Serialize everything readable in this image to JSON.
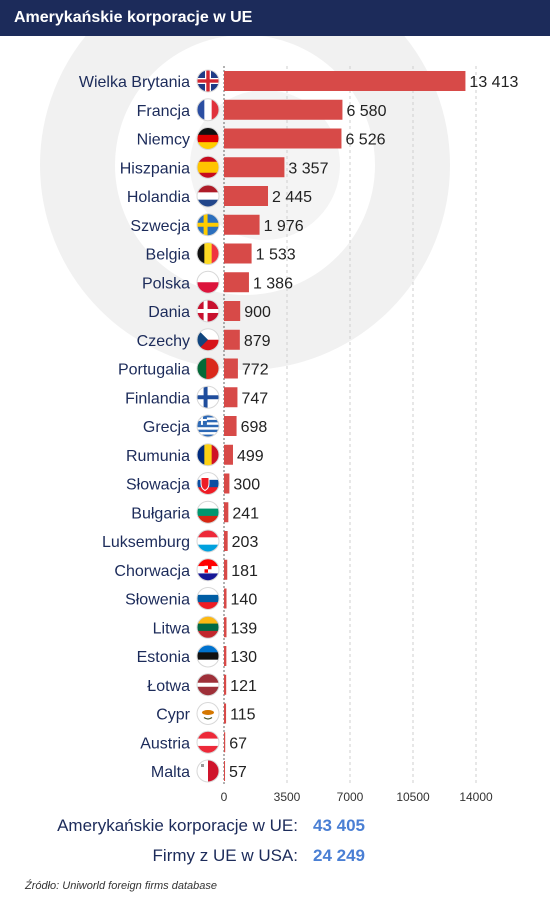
{
  "header": {
    "title": "Amerykańskie korporacje w UE"
  },
  "chart_data": {
    "type": "bar",
    "orientation": "horizontal",
    "title": "Amerykańskie korporacje w UE",
    "categories": [
      "Wielka Brytania",
      "Francja",
      "Niemcy",
      "Hiszpania",
      "Holandia",
      "Szwecja",
      "Belgia",
      "Polska",
      "Dania",
      "Czechy",
      "Portugalia",
      "Finlandia",
      "Grecja",
      "Rumunia",
      "Słowacja",
      "Bułgaria",
      "Luksemburg",
      "Chorwacja",
      "Słowenia",
      "Litwa",
      "Estonia",
      "Łotwa",
      "Cypr",
      "Austria",
      "Malta"
    ],
    "values": [
      13413,
      6580,
      6526,
      3357,
      2445,
      1976,
      1533,
      1386,
      900,
      879,
      772,
      747,
      698,
      499,
      300,
      241,
      203,
      181,
      140,
      139,
      130,
      121,
      115,
      67,
      57
    ],
    "value_labels": [
      "13 413",
      "6 580",
      "6 526",
      "3 357",
      "2 445",
      "1 976",
      "1 533",
      "1 386",
      "900",
      "879",
      "772",
      "747",
      "698",
      "499",
      "300",
      "241",
      "203",
      "181",
      "140",
      "139",
      "130",
      "121",
      "115",
      "67",
      "57"
    ],
    "flags": [
      "uk-flag-icon",
      "france-flag-icon",
      "germany-flag-icon",
      "spain-flag-icon",
      "netherlands-flag-icon",
      "sweden-flag-icon",
      "belgium-flag-icon",
      "poland-flag-icon",
      "denmark-flag-icon",
      "czech-flag-icon",
      "portugal-flag-icon",
      "finland-flag-icon",
      "greece-flag-icon",
      "romania-flag-icon",
      "slovakia-flag-icon",
      "bulgaria-flag-icon",
      "luxembourg-flag-icon",
      "croatia-flag-icon",
      "slovenia-flag-icon",
      "lithuania-flag-icon",
      "estonia-flag-icon",
      "latvia-flag-icon",
      "cyprus-flag-icon",
      "austria-flag-icon",
      "malta-flag-icon"
    ],
    "x_ticks": [
      0,
      3500,
      7000,
      10500,
      14000
    ],
    "x_tick_labels": [
      "0",
      "3500",
      "7000",
      "10500",
      "14000"
    ],
    "xlim": [
      0,
      14000
    ],
    "bar_color": "#d74a48",
    "grid": true
  },
  "summary": [
    {
      "label": "Amerykańskie korporacje w UE:",
      "value": "43 405"
    },
    {
      "label": "Firmy z UE w USA:",
      "value": "24 249"
    }
  ],
  "source": "Źródło: Uniworld foreign firms database",
  "colors": {
    "header_bg": "#1c2b5a",
    "text": "#1c2b5a",
    "accent": "#4a7fd4",
    "bar": "#d74a48"
  }
}
